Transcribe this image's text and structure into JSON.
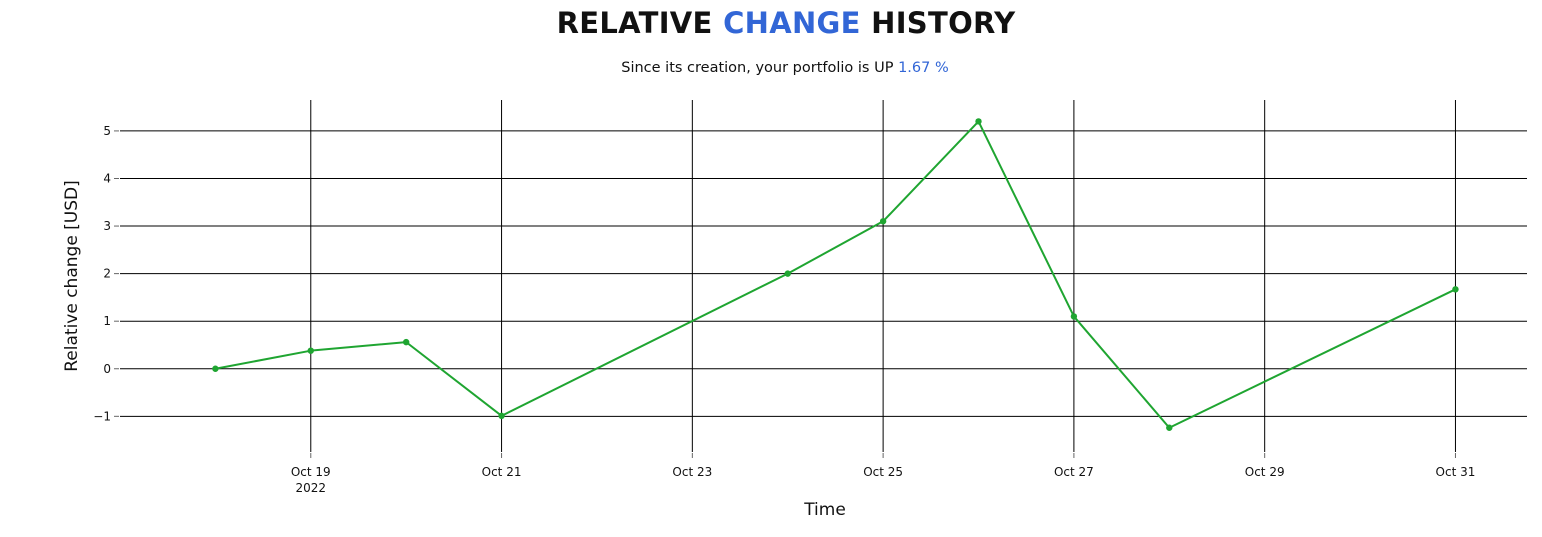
{
  "header": {
    "title_part1": "RELATIVE ",
    "title_accent": "CHANGE",
    "title_part2": " HISTORY",
    "subtitle_text": "Since its creation, your portfolio is UP ",
    "subtitle_value": "1.67 %"
  },
  "colors": {
    "accent": "#3266d6",
    "line": "#1fa531",
    "grid": "#000000"
  },
  "chart_data": {
    "type": "line",
    "title": "RELATIVE CHANGE HISTORY",
    "subtitle": "Since its creation, your portfolio is UP 1.67 %",
    "xlabel": "Time",
    "ylabel": "Relative change [USD]",
    "x": [
      "2022-10-18",
      "2022-10-19",
      "2022-10-20",
      "2022-10-21",
      "2022-10-24",
      "2022-10-25",
      "2022-10-26",
      "2022-10-27",
      "2022-10-28",
      "2022-10-31"
    ],
    "series": [
      {
        "values": [
          0,
          0.38,
          0.56,
          -0.99,
          2.0,
          3.1,
          5.2,
          1.1,
          -1.24,
          1.67
        ]
      }
    ],
    "xlim": [
      "2022-10-17T00:00",
      "2022-10-31T18:00"
    ],
    "ylim": [
      -1.75,
      5.65
    ],
    "x_ticks": [
      {
        "date": "2022-10-19",
        "label": "Oct 19",
        "sublabel": "2022"
      },
      {
        "date": "2022-10-21",
        "label": "Oct 21",
        "sublabel": ""
      },
      {
        "date": "2022-10-23",
        "label": "Oct 23",
        "sublabel": ""
      },
      {
        "date": "2022-10-25",
        "label": "Oct 25",
        "sublabel": ""
      },
      {
        "date": "2022-10-27",
        "label": "Oct 27",
        "sublabel": ""
      },
      {
        "date": "2022-10-29",
        "label": "Oct 29",
        "sublabel": ""
      },
      {
        "date": "2022-10-31",
        "label": "Oct 31",
        "sublabel": ""
      }
    ],
    "y_ticks": [
      {
        "value": -1,
        "label": "−1"
      },
      {
        "value": 0,
        "label": "0"
      },
      {
        "value": 1,
        "label": "1"
      },
      {
        "value": 2,
        "label": "2"
      },
      {
        "value": 3,
        "label": "3"
      },
      {
        "value": 4,
        "label": "4"
      },
      {
        "value": 5,
        "label": "5"
      }
    ],
    "grid": true,
    "legend": "none"
  }
}
